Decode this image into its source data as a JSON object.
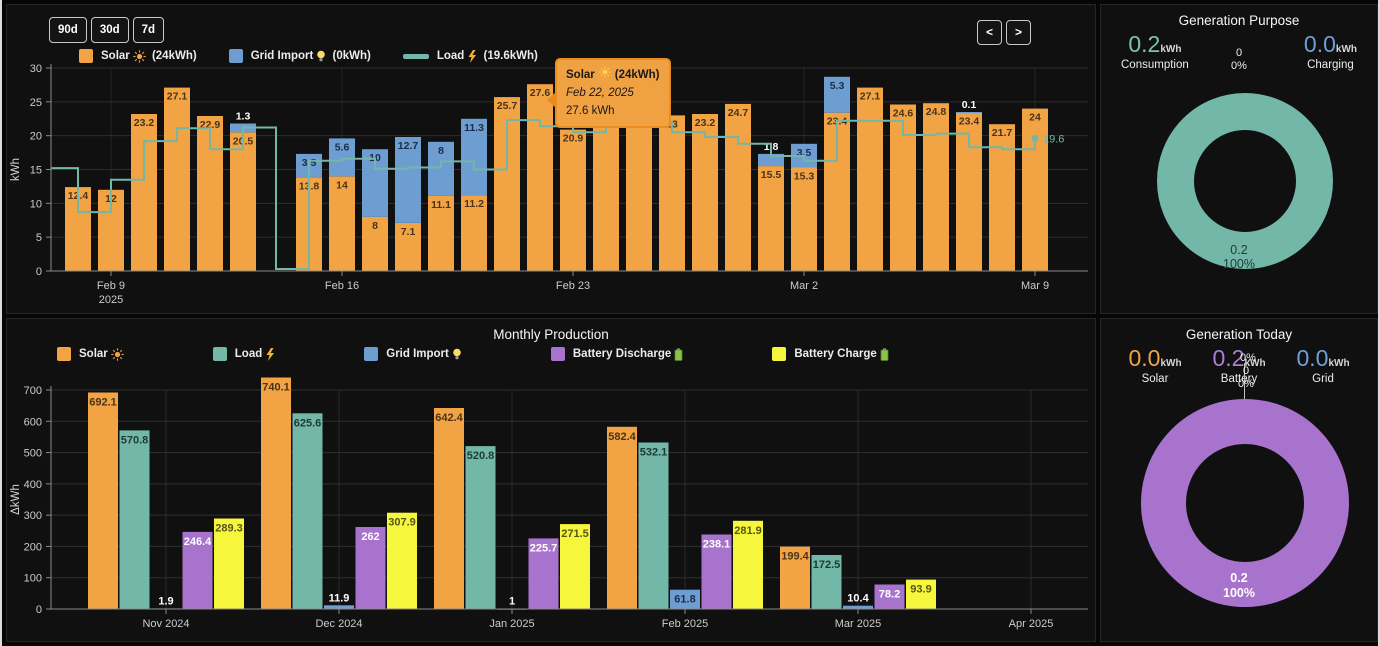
{
  "daily": {
    "range_buttons": [
      "90d",
      "30d",
      "7d"
    ],
    "prev_button": "<",
    "next_button": ">",
    "unit": "kWh",
    "y_ticks": [
      0,
      5,
      10,
      15,
      20,
      25,
      30
    ],
    "y_max": 30,
    "solar_color": "#f2a445",
    "grid_color": "#6d9dd1",
    "load_color": "#72b7a8",
    "legend": [
      {
        "name": "Solar",
        "icon": "sun",
        "amount": "(24kWh)",
        "color": "#f2a445",
        "swatch": "square"
      },
      {
        "name": "Grid Import",
        "icon": "bulb",
        "amount": "(0kWh)",
        "color": "#6d9dd1",
        "swatch": "square"
      },
      {
        "name": "Load",
        "icon": "bolt",
        "amount": "(19.6kWh)",
        "color": "#72b7a8",
        "swatch": "line"
      }
    ],
    "x_ticks": [
      {
        "slot": 2,
        "label": "Feb 9",
        "label2": "2025"
      },
      {
        "slot": 9,
        "label": "Feb 16"
      },
      {
        "slot": 16,
        "label": "Feb 23"
      },
      {
        "slot": 23,
        "label": "Mar 2"
      },
      {
        "slot": 30,
        "label": "Mar 9"
      }
    ],
    "bars": [
      {
        "solar": 12.4,
        "label": "12.4"
      },
      {
        "solar": 12,
        "label": "12"
      },
      {
        "solar": 23.2,
        "label": "23.2"
      },
      {
        "solar": 27.1,
        "label": "27.1"
      },
      {
        "solar": 22.9,
        "label": "22.9"
      },
      {
        "solar": 20.5,
        "label": "20.5",
        "grid": 1.3,
        "grid_label": "1.3",
        "grid_label_pos": "above"
      },
      {
        "solar": 0,
        "label": ""
      },
      {
        "solar": 13.8,
        "label": "13.8",
        "grid": 3.5,
        "grid_label": "3.5",
        "grid_label_pos": "in"
      },
      {
        "solar": 14,
        "label": "14",
        "grid": 5.6,
        "grid_label": "5.6",
        "grid_label_pos": "in"
      },
      {
        "solar": 8,
        "label": "8",
        "grid": 10,
        "grid_label": "10",
        "grid_label_pos": "in"
      },
      {
        "solar": 7.1,
        "label": "7.1",
        "grid": 12.7,
        "grid_label": "12.7",
        "grid_label_pos": "in"
      },
      {
        "solar": 11.1,
        "label": "11.1",
        "grid": 8,
        "grid_label": "8",
        "grid_label_pos": "in"
      },
      {
        "solar": 11.2,
        "label": "11.2",
        "grid": 11.3,
        "grid_label": "11.3",
        "grid_label_pos": "in"
      },
      {
        "solar": 25.7,
        "label": "25.7"
      },
      {
        "solar": 27.6,
        "label": "27.6"
      },
      {
        "solar": 20.9,
        "label": "20.9"
      },
      {
        "solar": 27.2,
        "label": ""
      },
      {
        "solar": 28.4,
        "label": "28.4",
        "grid": 0.1,
        "grid_label": "0.1",
        "grid_label_pos": "above"
      },
      {
        "solar": 23,
        "label": "23"
      },
      {
        "solar": 23.2,
        "label": "23.2"
      },
      {
        "solar": 24.7,
        "label": "24.7"
      },
      {
        "solar": 15.5,
        "label": "15.5",
        "grid": 1.8,
        "grid_label": "1.8",
        "grid_label_pos": "above"
      },
      {
        "solar": 15.3,
        "label": "15.3",
        "grid": 3.5,
        "grid_label": "3.5",
        "grid_label_pos": "in"
      },
      {
        "solar": 23.4,
        "label": "23.4",
        "grid": 5.3,
        "grid_label": "5.3",
        "grid_label_pos": "in"
      },
      {
        "solar": 27.1,
        "label": "27.1"
      },
      {
        "solar": 24.6,
        "label": "24.6"
      },
      {
        "solar": 24.8,
        "label": "24.8"
      },
      {
        "solar": 23.4,
        "label": "23.4",
        "grid": 0.1,
        "grid_label": "0.1",
        "grid_label_pos": "above"
      },
      {
        "solar": 21.7,
        "label": "21.7"
      },
      {
        "solar": 24,
        "label": "24"
      }
    ],
    "load_start": 15.2,
    "load": [
      8.7,
      13.5,
      19.2,
      21.1,
      18,
      21.2,
      0.3,
      16.3,
      16.6,
      15.1,
      15.3,
      16.2,
      15,
      22.3,
      21.4,
      20.5,
      21.5,
      21.9,
      20.5,
      19.8,
      18.8,
      17,
      16.3,
      22.2,
      22.2,
      20.1,
      20.3,
      18.3,
      18,
      19.6
    ],
    "load_end_label": "19.6",
    "tooltip": {
      "series": "Solar",
      "amount": "(24kWh)",
      "date": "Feb 22, 2025",
      "value": "27.6 kWh"
    }
  },
  "monthly": {
    "title": "Monthly Production",
    "unit": "ΔkWh",
    "y_ticks": [
      0,
      100,
      200,
      300,
      400,
      500,
      600,
      700
    ],
    "y_max": 700,
    "legend": [
      {
        "name": "Solar",
        "icon": "sun",
        "color": "#f2a445"
      },
      {
        "name": "Load",
        "icon": "bolt",
        "color": "#72b7a8"
      },
      {
        "name": "Grid Import",
        "icon": "bulb",
        "color": "#6d9dd1"
      },
      {
        "name": "Battery Discharge",
        "icon": "battery",
        "color": "#a873cc"
      },
      {
        "name": "Battery Charge",
        "icon": "battery",
        "color": "#f6f63c"
      }
    ],
    "categories": [
      "Nov 2024",
      "Dec 2024",
      "Jan 2025",
      "Feb 2025",
      "Mar 2025",
      "Apr 2025"
    ],
    "series": [
      {
        "name": "Solar",
        "color": "#f2a445",
        "label_color": "#4a3318",
        "values": [
          692.1,
          740.1,
          642.4,
          582.4,
          199.4,
          null
        ],
        "labels": [
          "692.1",
          "740.1",
          "642.4",
          "582.4",
          "199.4",
          ""
        ]
      },
      {
        "name": "Load",
        "color": "#72b7a8",
        "label_color": "#1d3b34",
        "values": [
          570.8,
          625.6,
          520.8,
          532.1,
          172.5,
          null
        ],
        "labels": [
          "570.8",
          "625.6",
          "520.8",
          "532.1",
          "172.5",
          ""
        ]
      },
      {
        "name": "Grid Import",
        "color": "#6d9dd1",
        "label_color": "#1b2d4a",
        "values": [
          1.9,
          11.9,
          1,
          61.8,
          10.4,
          null
        ],
        "labels": [
          "1.9",
          "11.9",
          "1",
          "61.8",
          "10.4",
          ""
        ],
        "label_pos": [
          "above",
          "above",
          "above",
          "in",
          "above",
          ""
        ]
      },
      {
        "name": "Battery Discharge",
        "color": "#a873cc",
        "label_color": "#ffffff",
        "values": [
          246.4,
          262,
          225.7,
          238.1,
          78.2,
          null
        ],
        "labels": [
          "246.4",
          "262",
          "225.7",
          "238.1",
          "78.2",
          ""
        ]
      },
      {
        "name": "Battery Charge",
        "color": "#f6f63c",
        "label_color": "#55551a",
        "values": [
          289.3,
          307.9,
          271.5,
          281.9,
          93.9,
          null
        ],
        "labels": [
          "289.3",
          "307.9",
          "271.5",
          "281.9",
          "93.9",
          ""
        ]
      }
    ]
  },
  "purpose": {
    "title": "Generation Purpose",
    "stats": [
      {
        "value": "0.2",
        "unit": "kWh",
        "label": "Consumption",
        "color": "#7cc3b4"
      },
      {
        "value": "0.0",
        "unit": "kWh",
        "label": "Charging",
        "color": "#6f9fd8"
      }
    ],
    "top_value": "0",
    "top_percent": "0%",
    "ring_color": "#72b7a8",
    "center_value": "0.2",
    "center_percent": "100%",
    "center_text_color": "#1e4039"
  },
  "today": {
    "title": "Generation Today",
    "stats": [
      {
        "value": "0.0",
        "unit": "kWh",
        "label": "Solar",
        "color": "#f2a445"
      },
      {
        "value": "0.2",
        "unit": "kWh",
        "label": "Battery",
        "color": "#a97fd4"
      },
      {
        "value": "0.0",
        "unit": "kWh",
        "label": "Grid",
        "color": "#6f9fd8"
      }
    ],
    "top_value": "0",
    "top_percent": "0%",
    "ring_color": "#a873cc",
    "center_value": "0.2",
    "center_percent": "100%",
    "center_text_color": "#ffffff"
  }
}
